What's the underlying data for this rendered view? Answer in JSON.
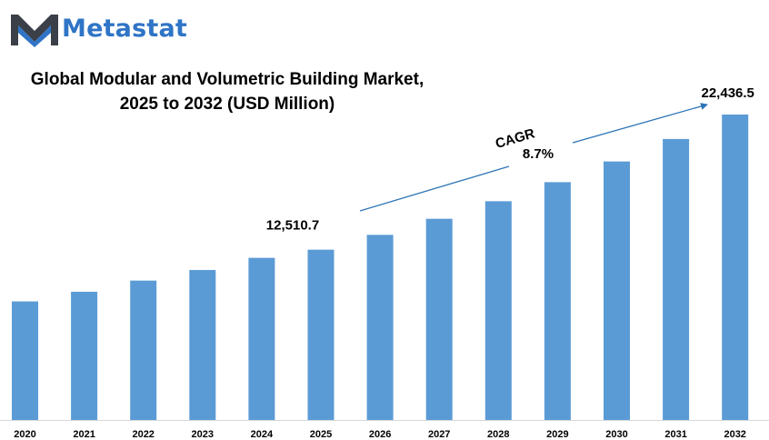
{
  "brand": {
    "name": "Metastat",
    "colors": {
      "logo_blue": "#2f74c6",
      "logo_dark": "#3a3f48"
    }
  },
  "title": {
    "line1": "Global Modular and Volumetric Building Market,",
    "line2": "2025 to 2032 (USD Million)"
  },
  "chart_data": {
    "type": "bar",
    "title": "Global Modular and Volumetric Building Market, 2025 to 2032 (USD Million)",
    "xlabel": "",
    "ylabel": "",
    "categories": [
      "2020",
      "2021",
      "2022",
      "2023",
      "2024",
      "2025",
      "2026",
      "2027",
      "2028",
      "2029",
      "2030",
      "2031",
      "2032"
    ],
    "values": [
      8710,
      9420,
      10240,
      11020,
      11910,
      12510.7,
      13600,
      14780,
      16070,
      17470,
      18990,
      20640,
      22436.5
    ],
    "ylim": [
      0,
      22436.5
    ],
    "grid": false,
    "legend": "none",
    "bar_color": "#5b9bd5",
    "data_labels": [
      {
        "category": "2025",
        "text": "12,510.7"
      },
      {
        "category": "2032",
        "text": "22,436.5"
      }
    ],
    "annotations": {
      "cagr_label": "CAGR",
      "cagr_value": "8.7%",
      "arrow_color": "#2e75b6"
    }
  }
}
